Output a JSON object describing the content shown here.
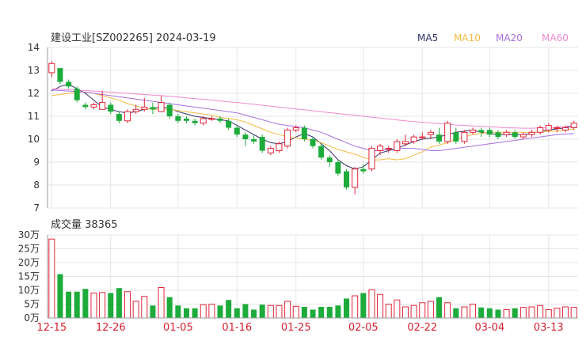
{
  "header": {
    "title": "建设工业[SZ002265] 2024-03-19",
    "legend": [
      {
        "label": "MA5",
        "color": "#333366"
      },
      {
        "label": "MA10",
        "color": "#f5b942"
      },
      {
        "label": "MA20",
        "color": "#a86fe0"
      },
      {
        "label": "MA60",
        "color": "#f08ad0"
      }
    ]
  },
  "volume_header": {
    "title": "成交量 38365"
  },
  "colors": {
    "up": "#e0263a",
    "down": "#1dab3b",
    "grid": "#e6e6e6",
    "axis": "#999999",
    "date_label": "#d62030"
  },
  "chart_data": [
    {
      "type": "candlestick",
      "title": "建设工业[SZ002265] 2024-03-19",
      "ylim": [
        7,
        14
      ],
      "yticks": [
        "14",
        "13",
        "12",
        "11",
        "10",
        "9",
        "8",
        "7"
      ],
      "xticks": [
        {
          "label": "12-15",
          "index": 0
        },
        {
          "label": "12-26",
          "index": 7
        },
        {
          "label": "01-05",
          "index": 15
        },
        {
          "label": "01-16",
          "index": 22
        },
        {
          "label": "01-25",
          "index": 29
        },
        {
          "label": "02-05",
          "index": 37
        },
        {
          "label": "02-22",
          "index": 44
        },
        {
          "label": "03-04",
          "index": 52
        },
        {
          "label": "03-13",
          "index": 59
        }
      ],
      "ohlc": [
        [
          12.9,
          13.3,
          13.4,
          12.7
        ],
        [
          13.1,
          12.5,
          13.1,
          12.4
        ],
        [
          12.5,
          12.3,
          12.6,
          12.2
        ],
        [
          12.2,
          11.7,
          12.3,
          11.6
        ],
        [
          11.5,
          11.4,
          11.6,
          11.3
        ],
        [
          11.4,
          11.5,
          11.6,
          11.3
        ],
        [
          11.3,
          11.6,
          12.1,
          11.3
        ],
        [
          11.5,
          11.2,
          11.6,
          11.1
        ],
        [
          11.1,
          10.8,
          11.2,
          10.7
        ],
        [
          10.8,
          11.2,
          11.3,
          10.7
        ],
        [
          11.2,
          11.3,
          11.5,
          11.1
        ],
        [
          11.3,
          11.4,
          11.8,
          11.2
        ],
        [
          11.4,
          11.3,
          11.6,
          11.1
        ],
        [
          11.2,
          11.6,
          11.9,
          11.2
        ],
        [
          11.5,
          11.0,
          11.6,
          10.9
        ],
        [
          11.0,
          10.8,
          11.1,
          10.7
        ],
        [
          10.9,
          10.8,
          11.0,
          10.7
        ],
        [
          10.8,
          10.7,
          10.9,
          10.6
        ],
        [
          10.7,
          10.9,
          11.0,
          10.6
        ],
        [
          10.9,
          10.9,
          11.0,
          10.8
        ],
        [
          10.9,
          10.8,
          11.0,
          10.7
        ],
        [
          10.8,
          10.5,
          10.9,
          10.4
        ],
        [
          10.5,
          10.2,
          10.6,
          10.1
        ],
        [
          10.2,
          10.0,
          10.3,
          9.7
        ],
        [
          10.0,
          9.9,
          10.2,
          9.8
        ],
        [
          10.1,
          9.5,
          10.2,
          9.4
        ],
        [
          9.4,
          9.6,
          9.7,
          9.3
        ],
        [
          9.5,
          9.8,
          9.9,
          9.4
        ],
        [
          9.7,
          10.4,
          10.5,
          9.6
        ],
        [
          10.4,
          10.5,
          10.6,
          10.3
        ],
        [
          10.5,
          10.0,
          10.6,
          9.9
        ],
        [
          10.0,
          9.7,
          10.1,
          9.6
        ],
        [
          9.7,
          9.2,
          9.8,
          9.1
        ],
        [
          9.2,
          9.0,
          9.3,
          8.8
        ],
        [
          9.0,
          8.5,
          9.1,
          8.4
        ],
        [
          8.6,
          7.9,
          8.7,
          7.8
        ],
        [
          7.9,
          8.7,
          8.8,
          7.6
        ],
        [
          8.7,
          8.6,
          8.9,
          8.5
        ],
        [
          8.7,
          9.6,
          9.7,
          8.6
        ],
        [
          9.5,
          9.7,
          9.8,
          9.3
        ],
        [
          9.6,
          9.6,
          9.7,
          9.4
        ],
        [
          9.5,
          9.9,
          10.0,
          9.4
        ],
        [
          9.8,
          9.9,
          10.2,
          9.7
        ],
        [
          9.9,
          10.1,
          10.2,
          9.8
        ],
        [
          10.1,
          10.1,
          10.3,
          10.0
        ],
        [
          10.2,
          10.3,
          10.4,
          10.0
        ],
        [
          10.2,
          9.9,
          10.5,
          9.8
        ],
        [
          9.9,
          10.7,
          10.8,
          9.8
        ],
        [
          10.3,
          9.9,
          10.5,
          9.8
        ],
        [
          9.9,
          10.3,
          10.4,
          9.8
        ],
        [
          10.3,
          10.4,
          10.5,
          10.2
        ],
        [
          10.4,
          10.3,
          10.5,
          10.1
        ],
        [
          10.4,
          10.2,
          10.5,
          10.1
        ],
        [
          10.3,
          10.1,
          10.4,
          10.0
        ],
        [
          10.2,
          10.3,
          10.4,
          10.1
        ],
        [
          10.3,
          10.1,
          10.4,
          10.0
        ],
        [
          10.1,
          10.2,
          10.3,
          10.0
        ],
        [
          10.2,
          10.3,
          10.4,
          10.1
        ],
        [
          10.3,
          10.5,
          10.6,
          10.2
        ],
        [
          10.4,
          10.6,
          10.7,
          10.3
        ],
        [
          10.5,
          10.5,
          10.6,
          10.3
        ],
        [
          10.4,
          10.5,
          10.6,
          10.3
        ],
        [
          10.5,
          10.7,
          10.8,
          10.4
        ]
      ],
      "series": [
        {
          "name": "MA5",
          "color": "#333366",
          "values": [
            12.1,
            12.3,
            12.4,
            12.2,
            12.0,
            11.7,
            11.4,
            11.3,
            11.2,
            11.15,
            11.2,
            11.3,
            11.35,
            11.4,
            11.35,
            11.2,
            11.1,
            11.0,
            10.95,
            10.9,
            10.85,
            10.8,
            10.6,
            10.4,
            10.2,
            10.0,
            9.85,
            9.8,
            9.9,
            10.1,
            10.25,
            10.1,
            9.8,
            9.5,
            9.1,
            8.85,
            8.7,
            8.8,
            9.1,
            9.4,
            9.5,
            9.6,
            9.75,
            9.9,
            10.0,
            10.05,
            10.1,
            10.2,
            10.3,
            10.35,
            10.4,
            10.3,
            10.25,
            10.2,
            10.2,
            10.2,
            10.2,
            10.25,
            10.35,
            10.4,
            10.45,
            10.5,
            10.6
          ]
        },
        {
          "name": "MA10",
          "color": "#f5b942",
          "values": [
            11.9,
            11.95,
            12.0,
            12.05,
            12.05,
            12.0,
            11.9,
            11.8,
            11.7,
            11.55,
            11.45,
            11.35,
            11.3,
            11.3,
            11.3,
            11.25,
            11.2,
            11.15,
            11.1,
            11.05,
            10.95,
            10.9,
            10.85,
            10.75,
            10.6,
            10.45,
            10.3,
            10.2,
            10.1,
            10.05,
            10.0,
            9.95,
            9.85,
            9.7,
            9.55,
            9.45,
            9.35,
            9.2,
            9.1,
            9.1,
            9.15,
            9.1,
            9.15,
            9.3,
            9.45,
            9.65,
            9.75,
            9.85,
            10.0,
            10.1,
            10.2,
            10.25,
            10.3,
            10.3,
            10.3,
            10.3,
            10.3,
            10.3,
            10.3,
            10.35,
            10.35,
            10.4,
            10.45
          ]
        },
        {
          "name": "MA20",
          "color": "#a86fe0",
          "values": [
            12.15,
            12.12,
            12.1,
            12.08,
            12.05,
            12.0,
            11.95,
            11.9,
            11.85,
            11.8,
            11.75,
            11.7,
            11.65,
            11.6,
            11.55,
            11.5,
            11.45,
            11.4,
            11.35,
            11.3,
            11.25,
            11.2,
            11.15,
            11.05,
            10.95,
            10.85,
            10.75,
            10.65,
            10.6,
            10.55,
            10.5,
            10.4,
            10.3,
            10.15,
            10.0,
            9.85,
            9.7,
            9.6,
            9.5,
            9.5,
            9.55,
            9.6,
            9.6,
            9.6,
            9.55,
            9.5,
            9.5,
            9.55,
            9.6,
            9.65,
            9.7,
            9.75,
            9.8,
            9.85,
            9.9,
            9.95,
            10.0,
            10.05,
            10.1,
            10.15,
            10.2,
            10.22,
            10.25
          ]
        },
        {
          "name": "MA60",
          "color": "#f08ad0",
          "values": [
            12.2,
            12.18,
            12.16,
            12.14,
            12.12,
            12.1,
            12.08,
            12.05,
            12.02,
            12.0,
            11.97,
            11.95,
            11.92,
            11.9,
            11.87,
            11.84,
            11.8,
            11.77,
            11.74,
            11.7,
            11.67,
            11.63,
            11.6,
            11.56,
            11.52,
            11.48,
            11.44,
            11.4,
            11.36,
            11.32,
            11.28,
            11.24,
            11.2,
            11.16,
            11.12,
            11.08,
            11.04,
            11.0,
            10.96,
            10.92,
            10.88,
            10.84,
            10.8,
            10.77,
            10.74,
            10.71,
            10.68,
            10.65,
            10.62,
            10.6,
            10.58,
            10.56,
            10.54,
            10.52,
            10.5,
            10.49,
            10.48,
            10.48,
            10.49,
            10.5,
            10.52,
            10.55,
            10.6
          ]
        }
      ]
    },
    {
      "type": "bar",
      "title": "成交量 38365",
      "ylim": [
        0,
        30
      ],
      "yticks": [
        "30万",
        "25万",
        "20万",
        "15万",
        "10万",
        "5万",
        "0万"
      ],
      "values": [
        28.5,
        15.8,
        9.5,
        9.5,
        10.5,
        9.0,
        9.2,
        9.0,
        10.8,
        9.5,
        6.0,
        7.8,
        4.5,
        11.0,
        7.5,
        4.5,
        3.5,
        3.5,
        4.8,
        5.0,
        4.5,
        6.5,
        3.5,
        5.0,
        3.0,
        4.8,
        4.5,
        4.5,
        6.0,
        4.2,
        4.0,
        3.0,
        4.0,
        4.0,
        4.5,
        7.0,
        8.0,
        9.0,
        10.2,
        8.5,
        5.0,
        6.5,
        4.0,
        4.5,
        5.5,
        6.0,
        7.5,
        5.5,
        3.5,
        4.0,
        5.0,
        3.8,
        3.5,
        3.0,
        3.0,
        3.5,
        3.8,
        4.0,
        4.5,
        3.0,
        3.5,
        4.0,
        3.8
      ]
    }
  ]
}
